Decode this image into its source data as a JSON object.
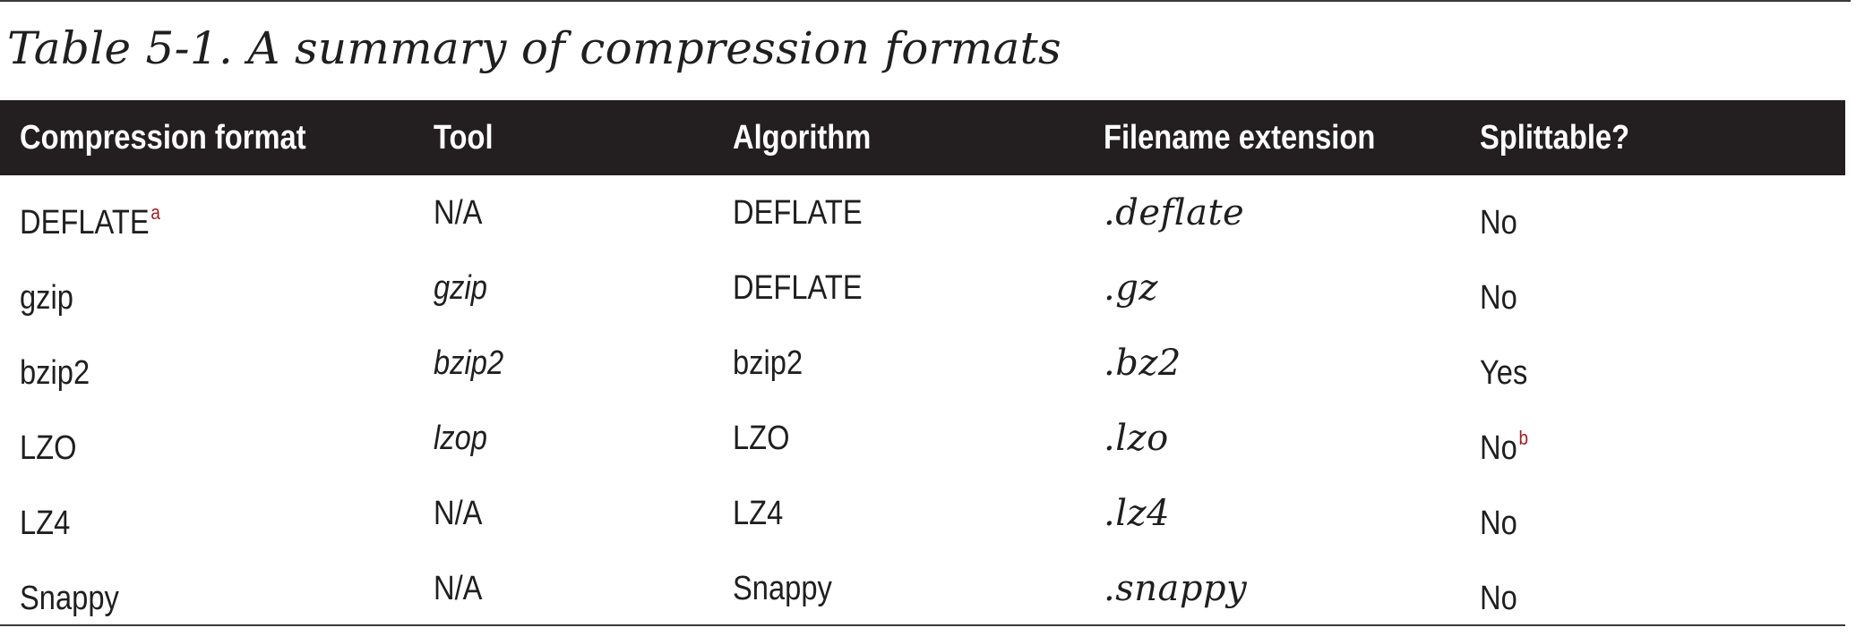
{
  "caption": "Table 5-1. A summary of compression formats",
  "columns": [
    "Compression format",
    "Tool",
    "Algorithm",
    "Filename extension",
    "Splittable?"
  ],
  "rows": [
    {
      "format": "DEFLATE",
      "format_note": "a",
      "tool": "N/A",
      "tool_italic": false,
      "algorithm": "DEFLATE",
      "extension": ".deflate",
      "splittable": "No",
      "splittable_note": ""
    },
    {
      "format": "gzip",
      "format_note": "",
      "tool": "gzip",
      "tool_italic": true,
      "algorithm": "DEFLATE",
      "extension": ".gz",
      "splittable": "No",
      "splittable_note": ""
    },
    {
      "format": "bzip2",
      "format_note": "",
      "tool": "bzip2",
      "tool_italic": true,
      "algorithm": "bzip2",
      "extension": ".bz2",
      "splittable": "Yes",
      "splittable_note": ""
    },
    {
      "format": "LZO",
      "format_note": "",
      "tool": "lzop",
      "tool_italic": true,
      "algorithm": "LZO",
      "extension": ".lzo",
      "splittable": "No",
      "splittable_note": "b"
    },
    {
      "format": "LZ4",
      "format_note": "",
      "tool": "N/A",
      "tool_italic": false,
      "algorithm": "LZ4",
      "extension": ".lz4",
      "splittable": "No",
      "splittable_note": ""
    },
    {
      "format": "Snappy",
      "format_note": "",
      "tool": "N/A",
      "tool_italic": false,
      "algorithm": "Snappy",
      "extension": ".snappy",
      "splittable": "No",
      "splittable_note": ""
    }
  ],
  "colors": {
    "header_background": "#231f20",
    "header_text": "#ffffff",
    "footnote_marker": "#a01d21"
  }
}
